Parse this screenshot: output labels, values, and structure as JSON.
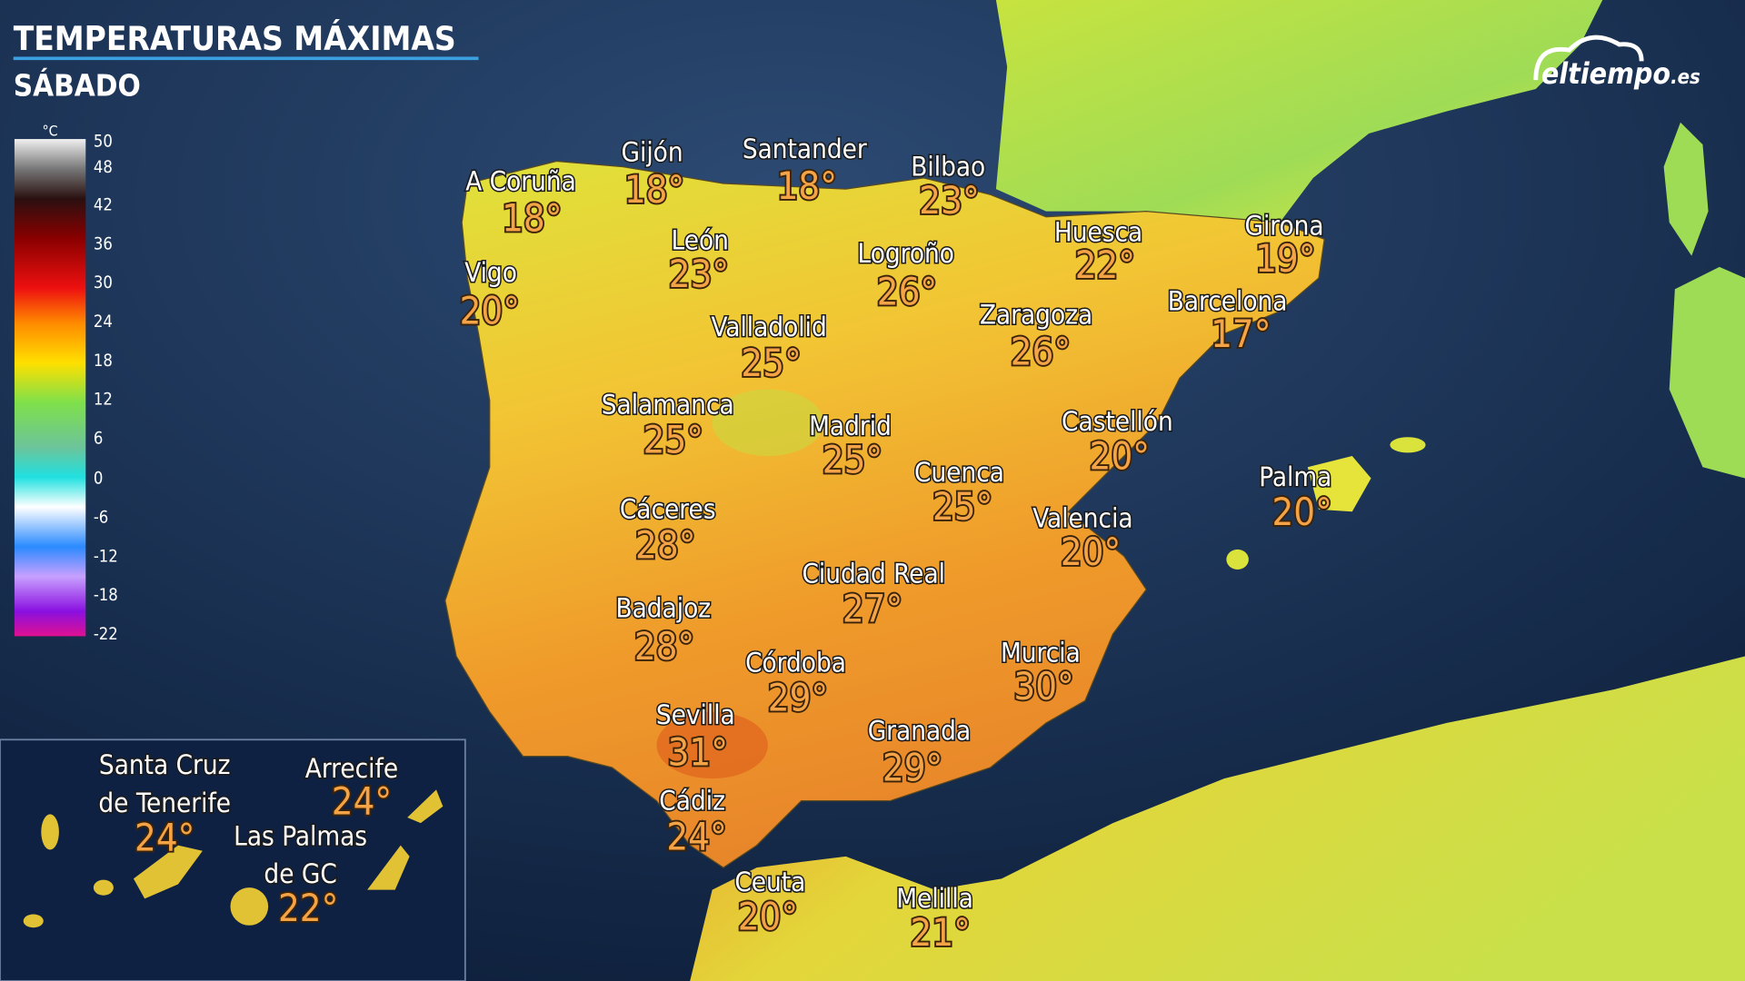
{
  "header": {
    "title": "TEMPERATURAS MÁXIMAS",
    "subtitle": "SÁBADO"
  },
  "logo": {
    "name": "eltiempo",
    "suffix": ".es"
  },
  "legend": {
    "unit": "°C",
    "labels": [
      50,
      48,
      42,
      36,
      30,
      24,
      18,
      12,
      6,
      0,
      -6,
      -12,
      -18,
      -22
    ]
  },
  "cities": [
    {
      "name": "A Coruña",
      "temp": "18°"
    },
    {
      "name": "Gijón",
      "temp": "18°"
    },
    {
      "name": "Santander",
      "temp": "18°"
    },
    {
      "name": "Bilbao",
      "temp": "23°"
    },
    {
      "name": "León",
      "temp": "23°"
    },
    {
      "name": "Vigo",
      "temp": "20°"
    },
    {
      "name": "Logroño",
      "temp": "26°"
    },
    {
      "name": "Huesca",
      "temp": "22°"
    },
    {
      "name": "Girona",
      "temp": "19°"
    },
    {
      "name": "Barcelona",
      "temp": "17°"
    },
    {
      "name": "Zaragoza",
      "temp": "26°"
    },
    {
      "name": "Valladolid",
      "temp": "25°"
    },
    {
      "name": "Salamanca",
      "temp": "25°"
    },
    {
      "name": "Madrid",
      "temp": "25°"
    },
    {
      "name": "Castellón",
      "temp": "20°"
    },
    {
      "name": "Cuenca",
      "temp": "25°"
    },
    {
      "name": "Palma",
      "temp": "20°"
    },
    {
      "name": "Cáceres",
      "temp": "28°"
    },
    {
      "name": "Valencia",
      "temp": "20°"
    },
    {
      "name": "Ciudad Real",
      "temp": "27°"
    },
    {
      "name": "Badajoz",
      "temp": "28°"
    },
    {
      "name": "Murcia",
      "temp": "30°"
    },
    {
      "name": "Córdoba",
      "temp": "29°"
    },
    {
      "name": "Sevilla",
      "temp": "31°"
    },
    {
      "name": "Granada",
      "temp": "29°"
    },
    {
      "name": "Cádiz",
      "temp": "24°"
    },
    {
      "name": "Ceuta",
      "temp": "20°"
    },
    {
      "name": "Melilla",
      "temp": "21°"
    },
    {
      "name": [
        "Santa Cruz",
        "de Tenerife"
      ],
      "temp": "24°"
    },
    {
      "name": "Arrecife",
      "temp": "24°"
    },
    {
      "name": [
        "Las Palmas",
        "de GC"
      ],
      "temp": "22°"
    }
  ]
}
